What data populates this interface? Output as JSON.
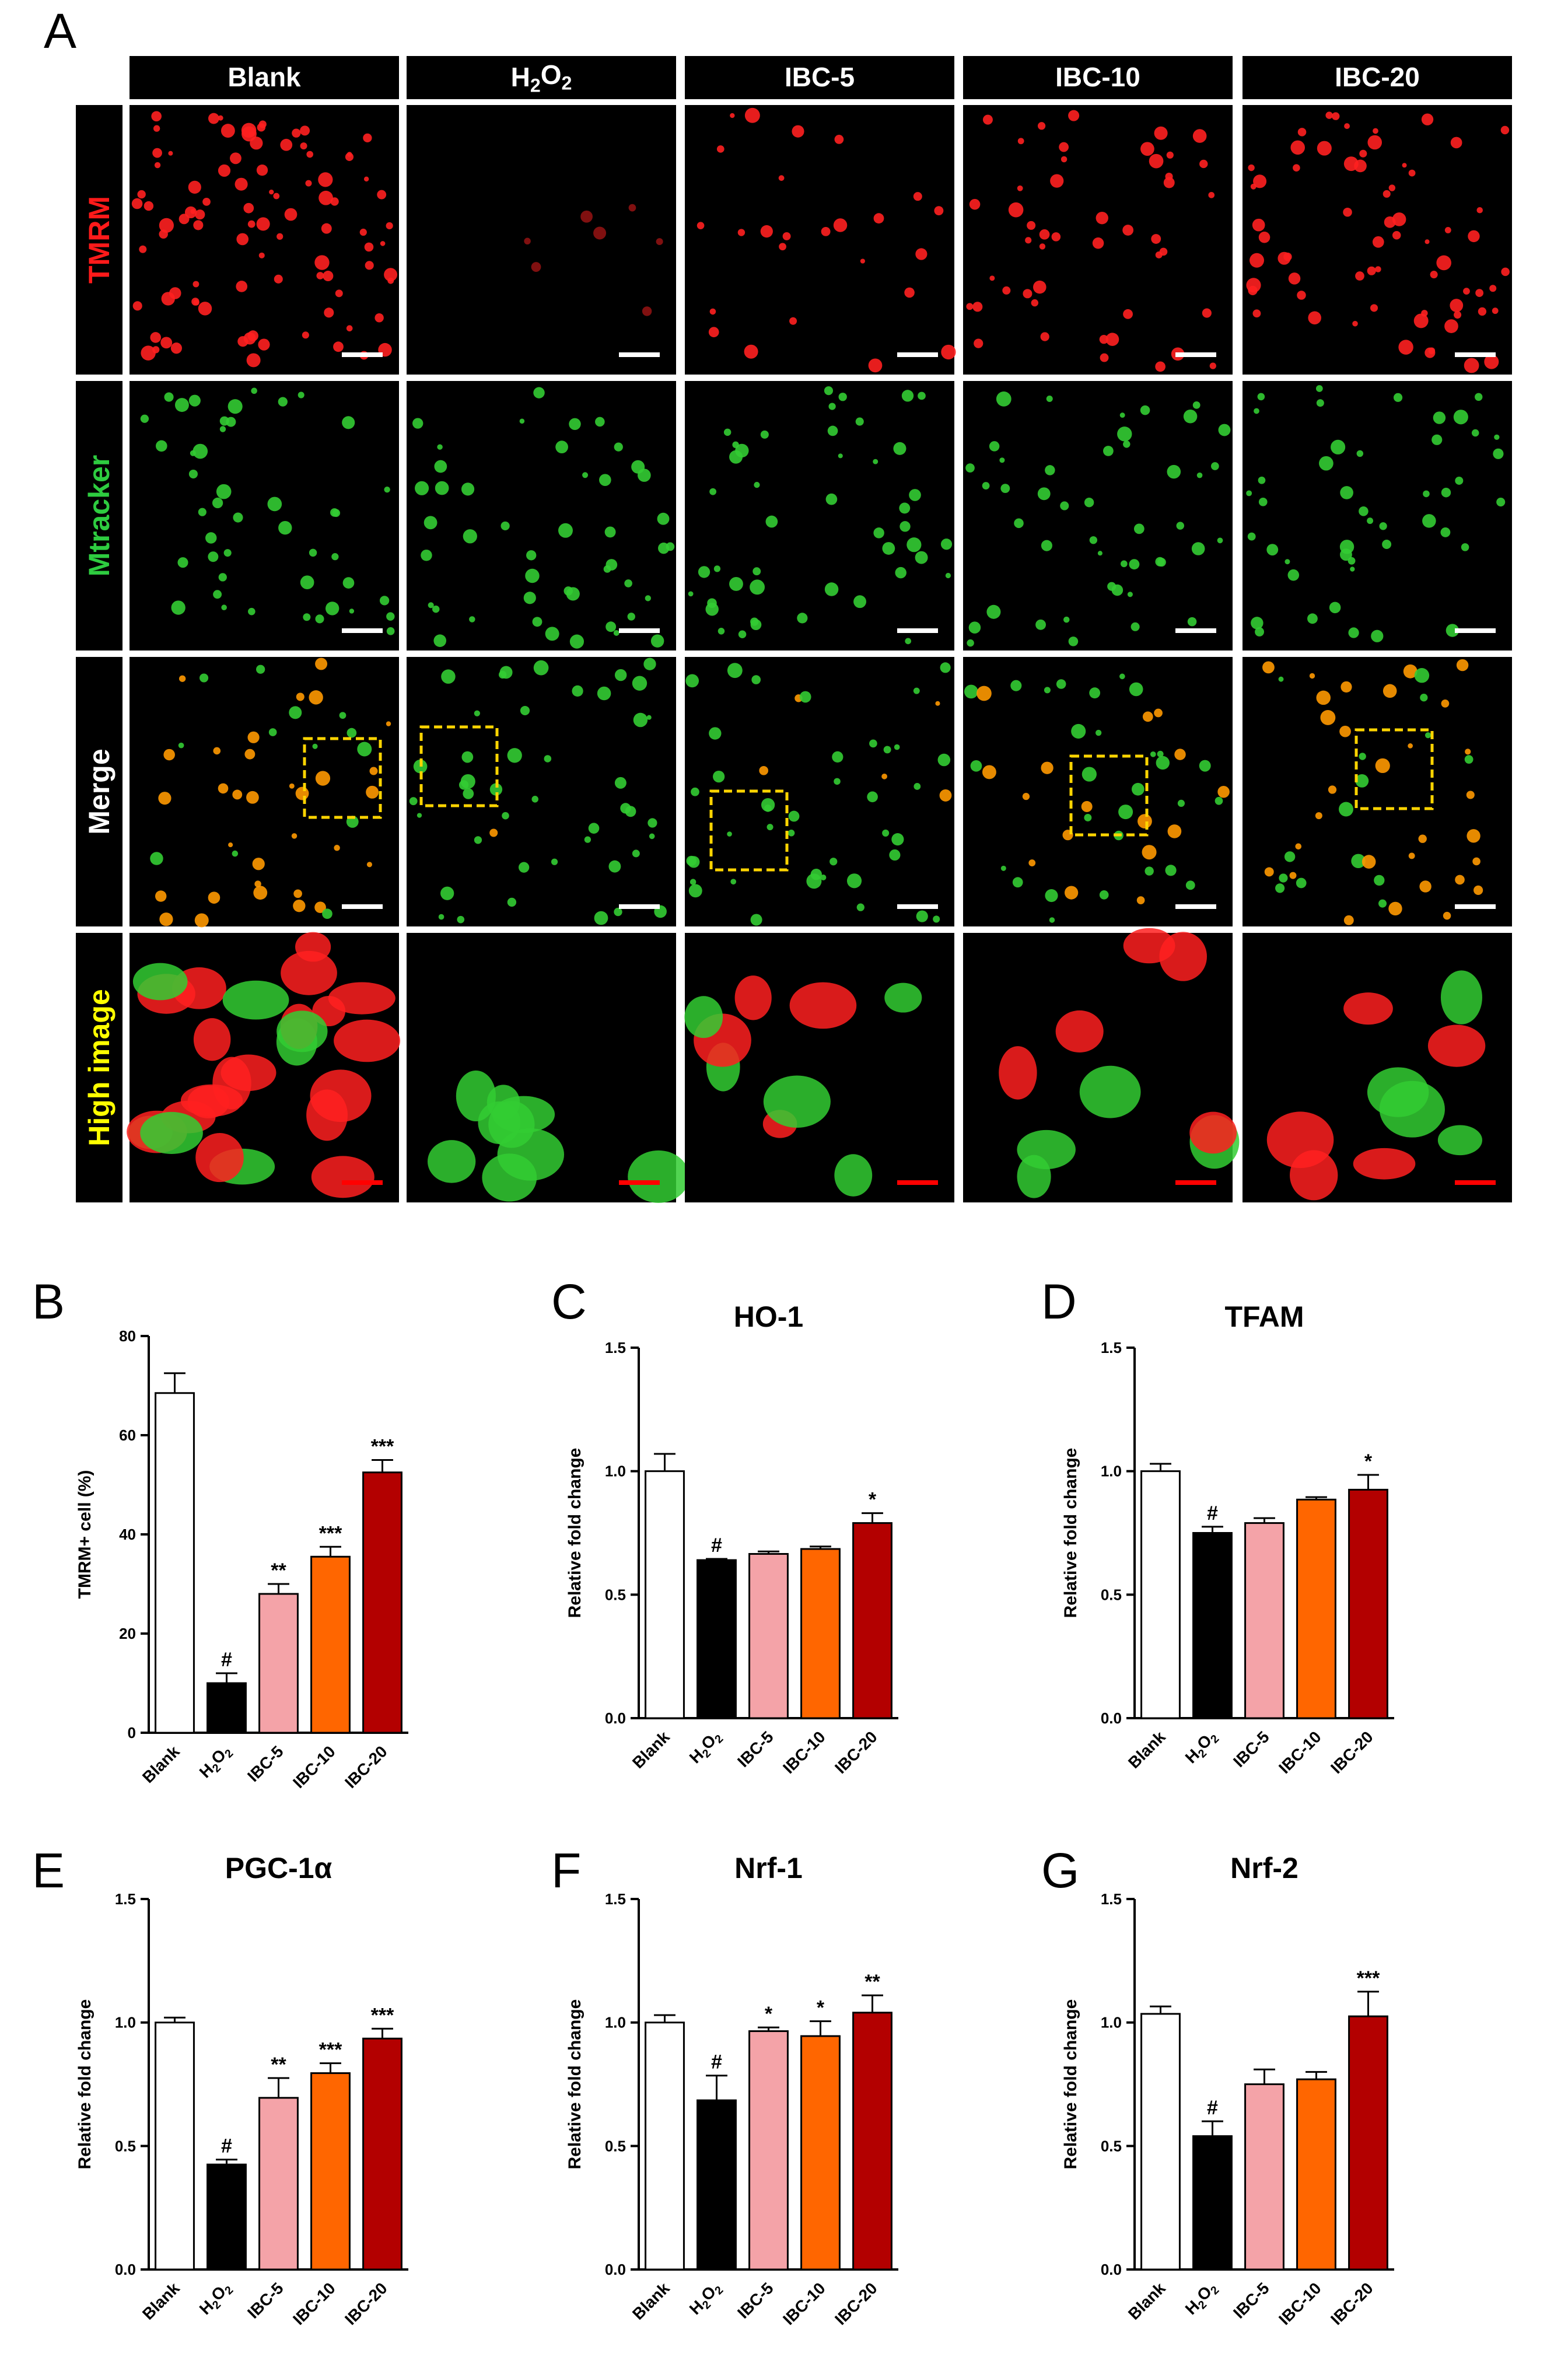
{
  "figure": {
    "panel_a_letter": "A",
    "columns": [
      "Blank",
      "H2O2",
      "IBC-5",
      "IBC-10",
      "IBC-20"
    ],
    "rows": [
      {
        "label": "TMRM",
        "color": "#ff1a1a"
      },
      {
        "label": "Mtracker",
        "color": "#2ecc40"
      },
      {
        "label": "Merge",
        "color": "#ffffff"
      },
      {
        "label": "High image",
        "color": "#ffff00"
      }
    ],
    "micrograph_colors": {
      "tmrm": "#ff2020",
      "mtracker": "#33cc33",
      "merge_overlap": "#ff9900",
      "roi_box": "#ffd400",
      "scalebar_white": "#ffffff",
      "scalebar_red": "#ff0000"
    }
  },
  "bar_colors": [
    "#ffffff",
    "#000000",
    "#f4a3a8",
    "#ff6600",
    "#b30000"
  ],
  "chart_data": [
    {
      "panel": "B",
      "type": "bar",
      "title": "",
      "xlabel": "",
      "ylabel": "TMRM+ cell (%)",
      "ylim": [
        0,
        80
      ],
      "yticks": [
        "0",
        "20",
        "40",
        "60",
        "80"
      ],
      "categories": [
        "Blank",
        "H2O2",
        "IBC-5",
        "IBC-10",
        "IBC-20"
      ],
      "values": [
        68.5,
        10,
        28,
        35.5,
        52.5
      ],
      "errors": [
        4,
        2,
        2,
        2,
        2.5
      ],
      "significance": [
        "",
        "#",
        "**",
        "***",
        "***"
      ]
    },
    {
      "panel": "C",
      "type": "bar",
      "title": "HO-1",
      "xlabel": "",
      "ylabel": "Relative fold change",
      "ylim": [
        0,
        1.5
      ],
      "yticks": [
        "0.0",
        "0.5",
        "1.0",
        "1.5"
      ],
      "categories": [
        "Blank",
        "H2O2",
        "IBC-5",
        "IBC-10",
        "IBC-20"
      ],
      "values": [
        1.0,
        0.64,
        0.665,
        0.685,
        0.79
      ],
      "errors": [
        0.07,
        0.005,
        0.01,
        0.01,
        0.04
      ],
      "significance": [
        "",
        "#",
        "",
        "",
        "*"
      ]
    },
    {
      "panel": "D",
      "type": "bar",
      "title": "TFAM",
      "xlabel": "",
      "ylabel": "Relative fold change",
      "ylim": [
        0,
        1.5
      ],
      "yticks": [
        "0.0",
        "0.5",
        "1.0",
        "1.5"
      ],
      "categories": [
        "Blank",
        "H2O2",
        "IBC-5",
        "IBC-10",
        "IBC-20"
      ],
      "values": [
        1.0,
        0.75,
        0.79,
        0.885,
        0.925
      ],
      "errors": [
        0.03,
        0.025,
        0.02,
        0.01,
        0.06
      ],
      "significance": [
        "",
        "#",
        "",
        "",
        "*"
      ]
    },
    {
      "panel": "E",
      "type": "bar",
      "title": "PGC-1α",
      "xlabel": "",
      "ylabel": "Relative fold change",
      "ylim": [
        0,
        1.5
      ],
      "yticks": [
        "0.0",
        "0.5",
        "1.0",
        "1.5"
      ],
      "categories": [
        "Blank",
        "H2O2",
        "IBC-5",
        "IBC-10",
        "IBC-20"
      ],
      "values": [
        1.0,
        0.425,
        0.695,
        0.795,
        0.935
      ],
      "errors": [
        0.02,
        0.02,
        0.08,
        0.04,
        0.04
      ],
      "significance": [
        "",
        "#",
        "**",
        "***",
        "***"
      ]
    },
    {
      "panel": "F",
      "type": "bar",
      "title": "Nrf-1",
      "xlabel": "",
      "ylabel": "Relative fold change",
      "ylim": [
        0,
        1.5
      ],
      "yticks": [
        "0.0",
        "0.5",
        "1.0",
        "1.5"
      ],
      "categories": [
        "Blank",
        "H2O2",
        "IBC-5",
        "IBC-10",
        "IBC-20"
      ],
      "values": [
        1.0,
        0.685,
        0.965,
        0.945,
        1.04
      ],
      "errors": [
        0.03,
        0.1,
        0.015,
        0.06,
        0.07
      ],
      "significance": [
        "",
        "#",
        "*",
        "*",
        "**"
      ]
    },
    {
      "panel": "G",
      "type": "bar",
      "title": "Nrf-2",
      "xlabel": "",
      "ylabel": "Relative fold change",
      "ylim": [
        0,
        1.5
      ],
      "yticks": [
        "0.0",
        "0.5",
        "1.0",
        "1.5"
      ],
      "categories": [
        "Blank",
        "H2O2",
        "IBC-5",
        "IBC-10",
        "IBC-20"
      ],
      "values": [
        1.035,
        0.54,
        0.75,
        0.77,
        1.025
      ],
      "errors": [
        0.03,
        0.06,
        0.06,
        0.03,
        0.1
      ],
      "significance": [
        "",
        "#",
        "",
        "",
        "***"
      ]
    }
  ]
}
